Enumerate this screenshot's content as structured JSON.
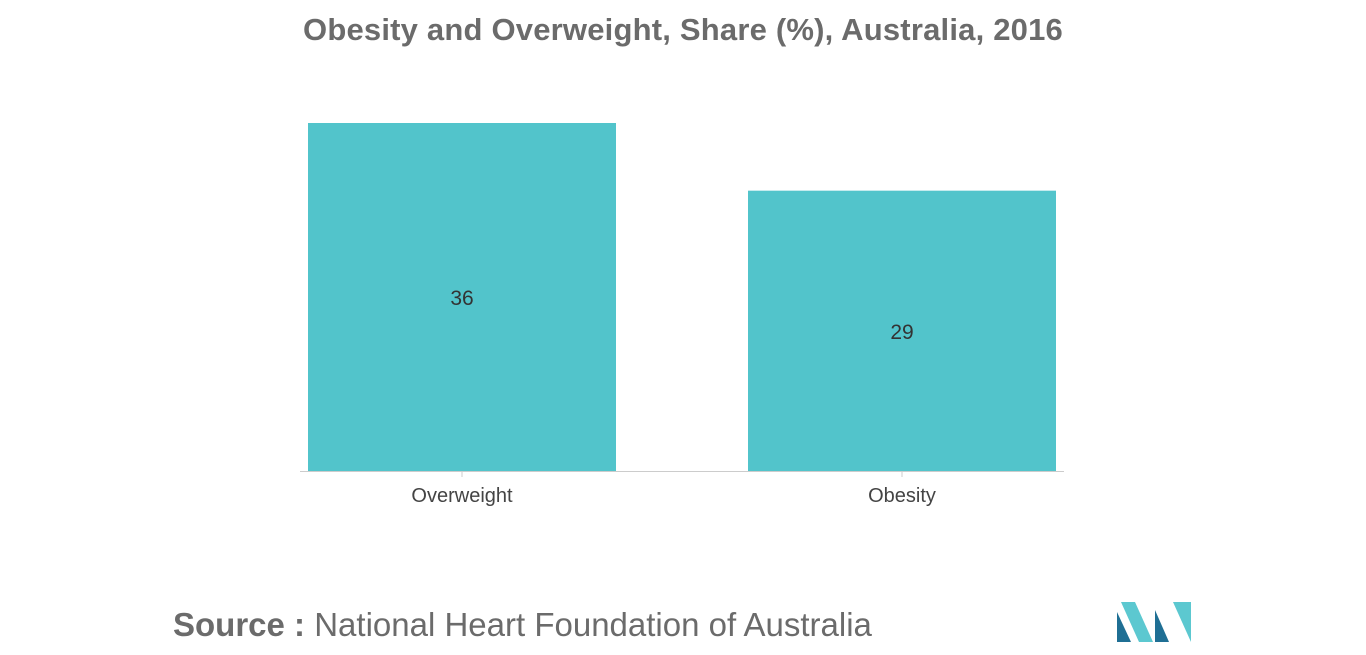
{
  "chart_data": {
    "type": "bar",
    "title": "Obesity and Overweight, Share (%), Australia, 2016",
    "categories": [
      "Overweight",
      "Obesity"
    ],
    "values": [
      36,
      29
    ],
    "xlabel": "",
    "ylabel": "",
    "ylim": [
      0,
      40
    ],
    "grid": false,
    "legend": "none"
  },
  "source": {
    "label": "Source :",
    "text": "National Heart Foundation of Australia"
  },
  "colors": {
    "bar": "#52c4cb",
    "title": "#6b6b6b",
    "axis": "#cccccc",
    "value_label": "#333333",
    "tick_label": "#444444",
    "logo_dark": "#1f6f94",
    "logo_light": "#5cc8d0"
  },
  "logo": {
    "name": "mordor-intelligence-logo-icon"
  }
}
